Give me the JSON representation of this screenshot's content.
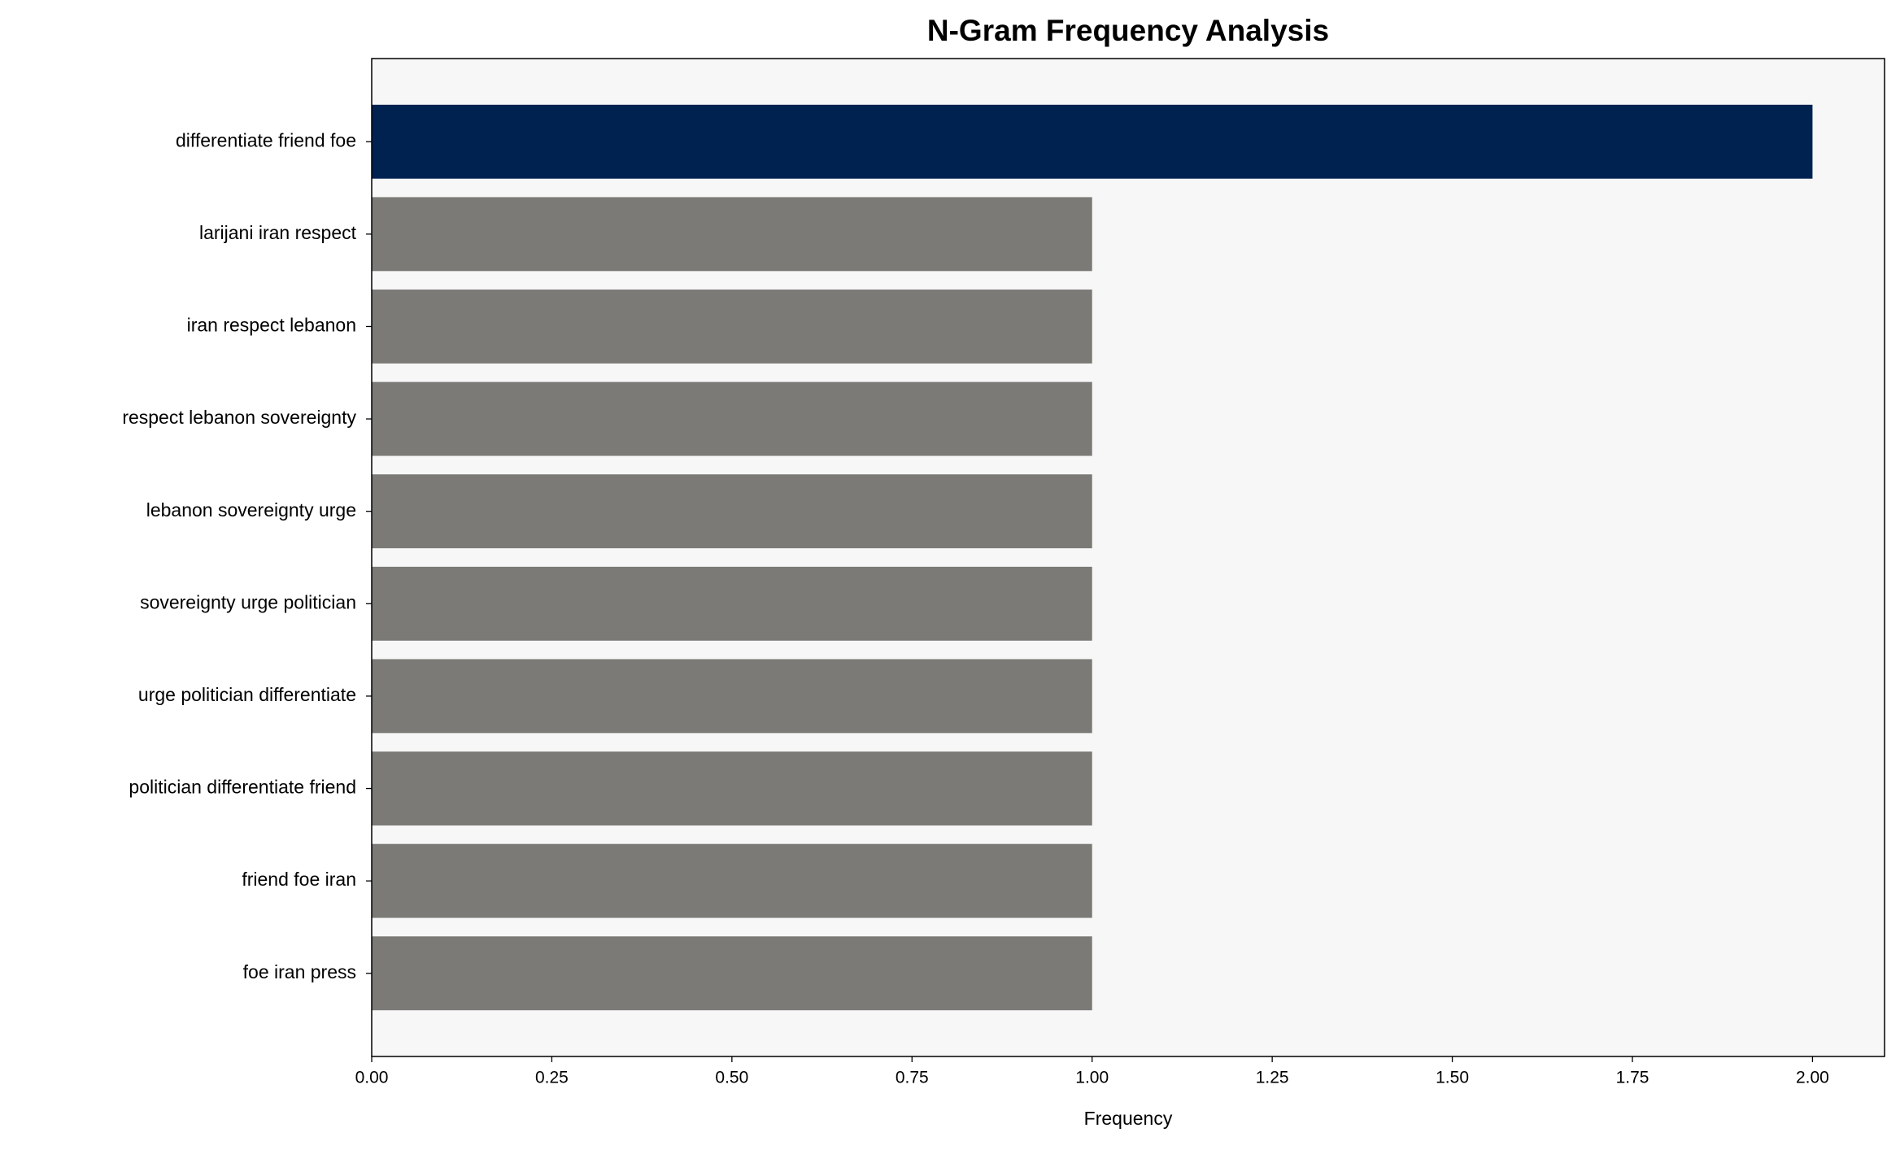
{
  "chart_data": {
    "type": "barh",
    "title": "N-Gram Frequency Analysis",
    "xlabel": "Frequency",
    "categories": [
      "differentiate friend foe",
      "larijani iran respect",
      "iran respect lebanon",
      "respect lebanon sovereignty",
      "lebanon sovereignty urge",
      "sovereignty urge politician",
      "urge politician differentiate",
      "politician differentiate friend",
      "friend foe iran",
      "foe iran press"
    ],
    "values": [
      2,
      1,
      1,
      1,
      1,
      1,
      1,
      1,
      1,
      1
    ],
    "colors": [
      "#002251",
      "#7b7a76",
      "#7b7a76",
      "#7b7a76",
      "#7b7a76",
      "#7b7a76",
      "#7b7a76",
      "#7b7a76",
      "#7b7a76",
      "#7b7a76"
    ],
    "xlim": [
      0,
      2.1
    ],
    "xticks": [
      {
        "value": 0,
        "label": "0.00"
      },
      {
        "value": 0.25,
        "label": "0.25"
      },
      {
        "value": 0.5,
        "label": "0.50"
      },
      {
        "value": 0.75,
        "label": "0.75"
      },
      {
        "value": 1,
        "label": "1.00"
      },
      {
        "value": 1.25,
        "label": "1.25"
      },
      {
        "value": 1.5,
        "label": "1.50"
      },
      {
        "value": 1.75,
        "label": "1.75"
      },
      {
        "value": 2,
        "label": "2.00"
      }
    ],
    "grid": false
  }
}
